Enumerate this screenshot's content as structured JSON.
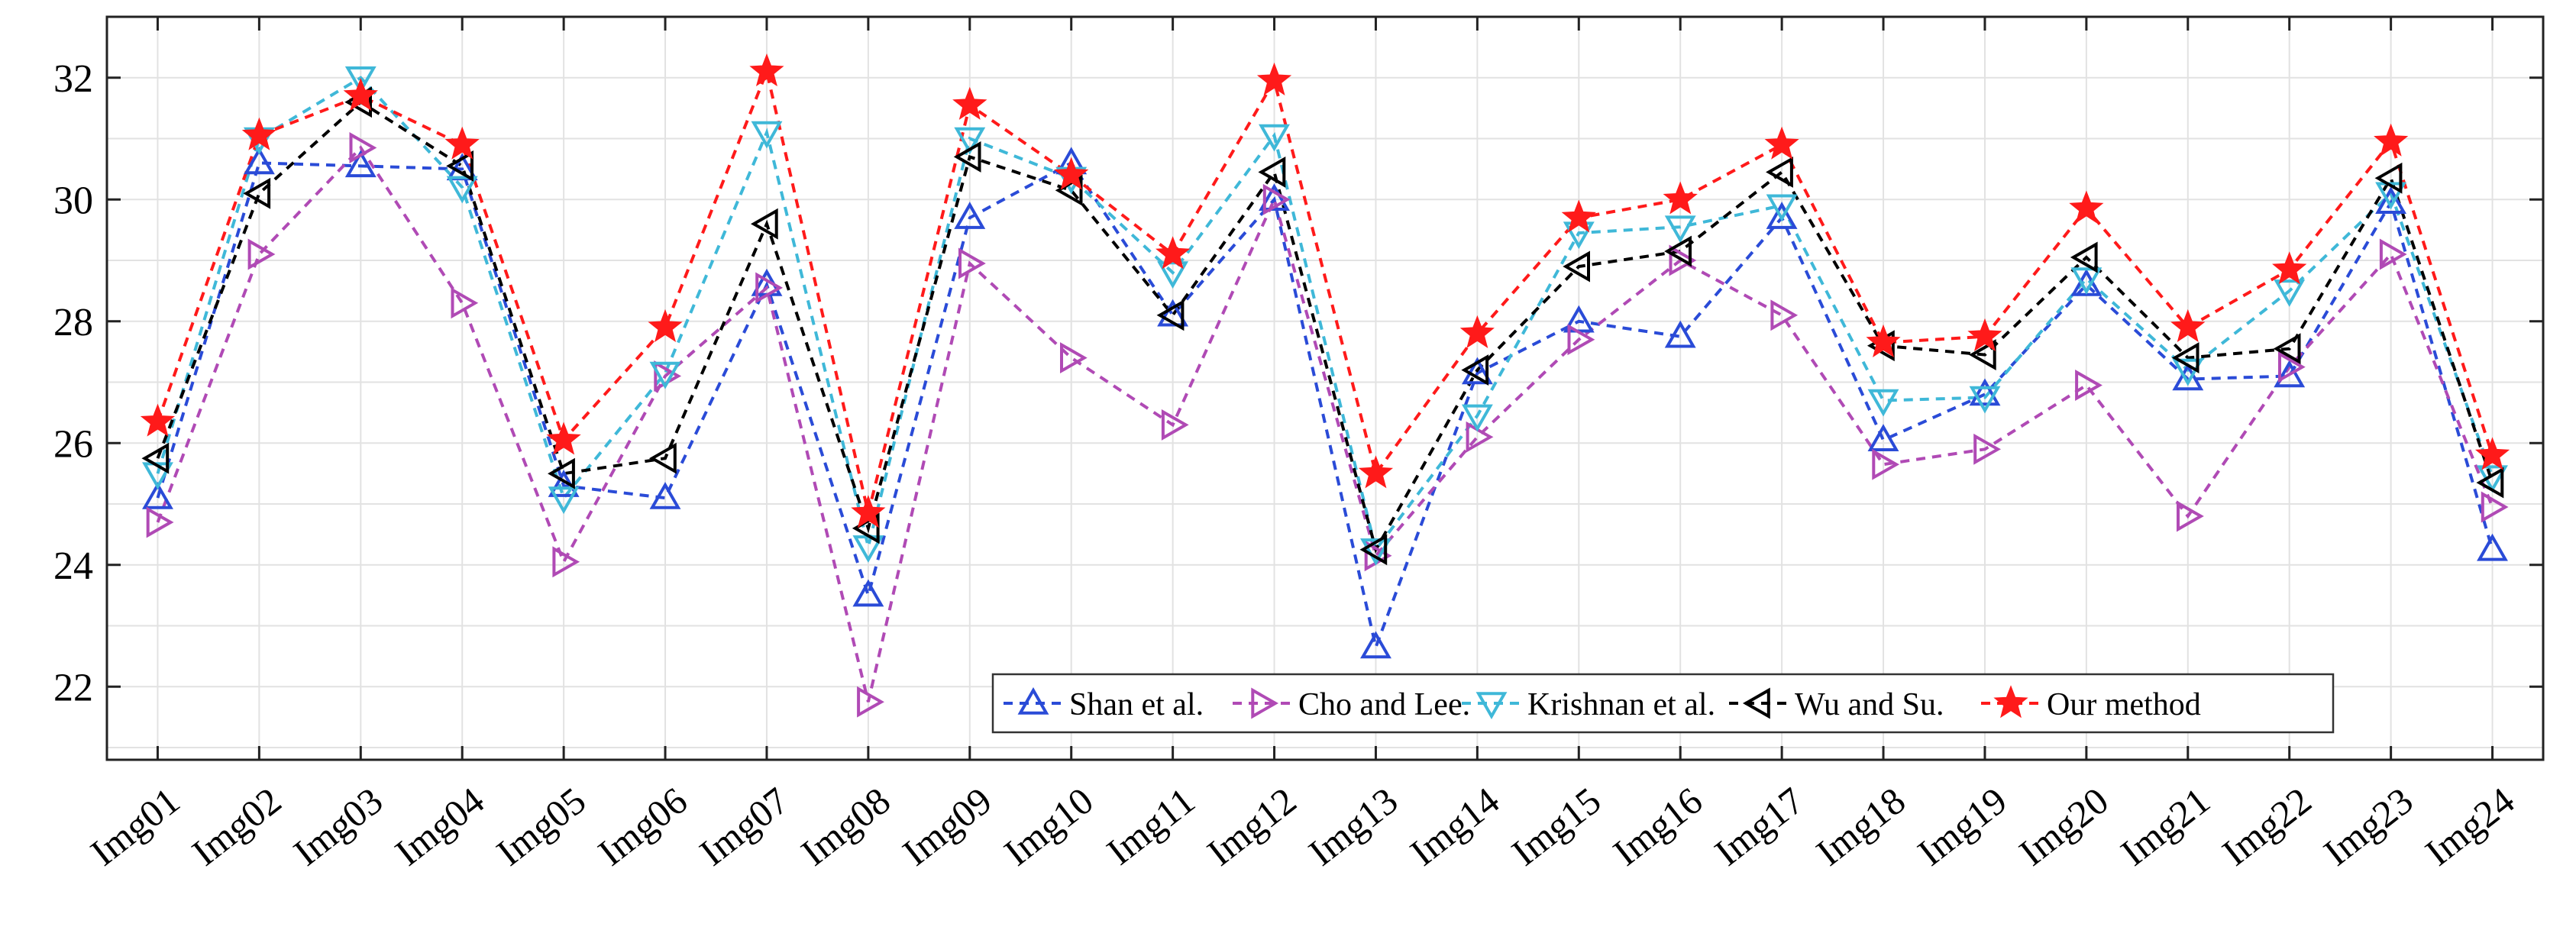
{
  "chart_data": {
    "type": "line",
    "title": "",
    "xlabel": "",
    "ylabel": "",
    "ylim": [
      20.8,
      33.0
    ],
    "yticks": [
      22,
      24,
      26,
      28,
      30,
      32
    ],
    "grid": true,
    "legend_position": "bottom-right",
    "categories": [
      "Img01",
      "Img02",
      "Img03",
      "Img04",
      "Img05",
      "Img06",
      "Img07",
      "Img08",
      "Img09",
      "Img10",
      "Img11",
      "Img12",
      "Img13",
      "Img14",
      "Img15",
      "Img16",
      "Img17",
      "Img18",
      "Img19",
      "Img20",
      "Img21",
      "Img22",
      "Img23",
      "Img24"
    ],
    "series": [
      {
        "name": "Shan et al.",
        "color": "#2a4bd7",
        "marker": "triangle-up",
        "values": [
          25.1,
          30.6,
          30.55,
          30.5,
          25.3,
          25.1,
          28.6,
          23.5,
          29.7,
          30.6,
          28.1,
          30.0,
          22.65,
          27.15,
          28.0,
          27.75,
          29.7,
          26.05,
          26.8,
          28.6,
          27.05,
          27.1,
          29.95,
          24.25
        ]
      },
      {
        "name": "Cho and Lee.",
        "color": "#b04ab5",
        "marker": "triangle-right",
        "values": [
          24.7,
          29.1,
          30.85,
          28.3,
          24.05,
          27.1,
          28.55,
          21.75,
          28.95,
          27.4,
          26.3,
          30.0,
          24.15,
          26.1,
          27.7,
          29.0,
          28.1,
          25.65,
          25.9,
          26.95,
          24.8,
          27.25,
          29.1,
          24.95
        ]
      },
      {
        "name": "Krishnan et al.",
        "color": "#3fb8d8",
        "marker": "triangle-down",
        "values": [
          25.5,
          31.0,
          32.0,
          30.2,
          25.1,
          27.15,
          31.1,
          24.3,
          31.0,
          30.35,
          28.8,
          31.05,
          24.25,
          26.45,
          29.45,
          29.55,
          29.9,
          26.7,
          26.75,
          28.7,
          27.2,
          28.5,
          30.1,
          25.45
        ]
      },
      {
        "name": "Wu and Su.",
        "color": "#000000",
        "marker": "triangle-left",
        "values": [
          25.75,
          30.1,
          31.6,
          30.55,
          25.5,
          25.75,
          29.6,
          24.6,
          30.7,
          30.15,
          28.1,
          30.45,
          24.25,
          27.2,
          28.9,
          29.15,
          30.45,
          27.6,
          27.45,
          29.05,
          27.4,
          27.55,
          30.35,
          25.35
        ]
      },
      {
        "name": "Our method",
        "color": "#ff1a1a",
        "marker": "star",
        "values": [
          26.35,
          31.05,
          31.7,
          30.9,
          26.05,
          27.9,
          32.1,
          24.85,
          31.55,
          30.4,
          29.1,
          31.95,
          25.5,
          27.8,
          29.7,
          30.0,
          30.9,
          27.65,
          27.75,
          29.85,
          27.9,
          28.85,
          30.95,
          25.8
        ]
      }
    ]
  }
}
